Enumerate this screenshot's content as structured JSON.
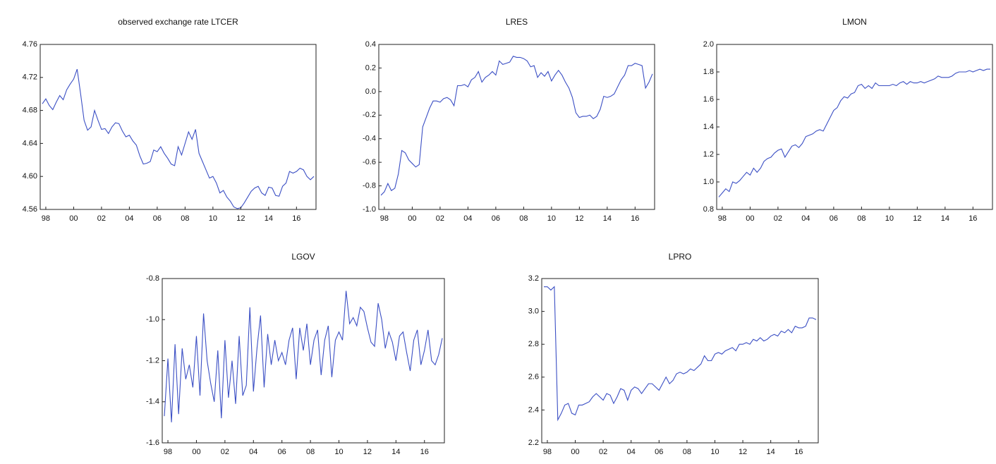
{
  "chart_data": [
    {
      "type": "line",
      "title": "observed exchange rate LTCER",
      "color": "#3b4fc4",
      "categories": [
        null,
        "98",
        null,
        null,
        null,
        null,
        null,
        null,
        null,
        "00",
        null,
        null,
        null,
        null,
        null,
        null,
        null,
        "02",
        null,
        null,
        null,
        null,
        null,
        null,
        null,
        "04",
        null,
        null,
        null,
        null,
        null,
        null,
        null,
        "06",
        null,
        null,
        null,
        null,
        null,
        null,
        null,
        "08",
        null,
        null,
        null,
        null,
        null,
        null,
        null,
        "10",
        null,
        null,
        null,
        null,
        null,
        null,
        null,
        "12",
        null,
        null,
        null,
        null,
        null,
        null,
        null,
        "14",
        null,
        null,
        null,
        null,
        null,
        null,
        null,
        "16",
        null,
        null,
        null,
        null,
        null
      ],
      "values": [
        4.688,
        4.694,
        4.686,
        4.681,
        4.69,
        4.698,
        4.693,
        4.705,
        4.712,
        4.718,
        4.73,
        4.7,
        4.668,
        4.656,
        4.66,
        4.68,
        4.668,
        4.657,
        4.658,
        4.652,
        4.66,
        4.665,
        4.664,
        4.655,
        4.648,
        4.65,
        4.643,
        4.638,
        4.625,
        4.615,
        4.616,
        4.618,
        4.632,
        4.63,
        4.636,
        4.628,
        4.622,
        4.615,
        4.613,
        4.636,
        4.626,
        4.64,
        4.654,
        4.645,
        4.657,
        4.628,
        4.618,
        4.608,
        4.598,
        4.6,
        4.592,
        4.58,
        4.583,
        4.575,
        4.57,
        4.563,
        4.561,
        4.562,
        4.568,
        4.575,
        4.582,
        4.586,
        4.588,
        4.58,
        4.577,
        4.587,
        4.586,
        4.577,
        4.576,
        4.588,
        4.592,
        4.606,
        4.604,
        4.606,
        4.61,
        4.608,
        4.6,
        4.596,
        4.6
      ],
      "ylim": [
        4.56,
        4.76
      ],
      "yticks": [
        4.56,
        {
          "value": 4.6,
          "label": "4.60"
        },
        4.64,
        4.68,
        4.72,
        4.76
      ]
    },
    {
      "type": "line",
      "title": "LRES",
      "color": "#3b4fc4",
      "categories": [
        null,
        "98",
        null,
        null,
        null,
        null,
        null,
        null,
        null,
        "00",
        null,
        null,
        null,
        null,
        null,
        null,
        null,
        "02",
        null,
        null,
        null,
        null,
        null,
        null,
        null,
        "04",
        null,
        null,
        null,
        null,
        null,
        null,
        null,
        "06",
        null,
        null,
        null,
        null,
        null,
        null,
        null,
        "08",
        null,
        null,
        null,
        null,
        null,
        null,
        null,
        "10",
        null,
        null,
        null,
        null,
        null,
        null,
        null,
        "12",
        null,
        null,
        null,
        null,
        null,
        null,
        null,
        "14",
        null,
        null,
        null,
        null,
        null,
        null,
        null,
        "16",
        null,
        null,
        null,
        null,
        null
      ],
      "values": [
        -0.88,
        -0.85,
        -0.78,
        -0.84,
        -0.82,
        -0.7,
        -0.5,
        -0.52,
        -0.58,
        -0.61,
        -0.64,
        -0.62,
        -0.3,
        -0.22,
        -0.14,
        -0.08,
        -0.08,
        -0.09,
        -0.06,
        -0.05,
        -0.07,
        -0.12,
        0.05,
        0.05,
        0.06,
        0.04,
        0.1,
        0.12,
        0.17,
        0.08,
        0.12,
        0.14,
        0.17,
        0.14,
        0.26,
        0.23,
        0.24,
        0.25,
        0.3,
        0.29,
        0.29,
        0.28,
        0.26,
        0.21,
        0.22,
        0.12,
        0.16,
        0.13,
        0.17,
        0.09,
        0.14,
        0.18,
        0.14,
        0.08,
        0.03,
        -0.05,
        -0.18,
        -0.22,
        -0.21,
        -0.21,
        -0.2,
        -0.23,
        -0.21,
        -0.15,
        -0.04,
        -0.05,
        -0.04,
        -0.02,
        0.04,
        0.1,
        0.14,
        0.22,
        0.22,
        0.24,
        0.23,
        0.22,
        0.03,
        0.08,
        0.15
      ],
      "ylim": [
        -1.0,
        0.4
      ],
      "yticks": [
        {
          "value": -1,
          "label": "-1.0"
        },
        -0.8,
        -0.6,
        -0.4,
        -0.2,
        {
          "value": 0,
          "label": "0.0"
        },
        0.2,
        0.4
      ]
    },
    {
      "type": "line",
      "title": "LMON",
      "color": "#3b4fc4",
      "categories": [
        null,
        "98",
        null,
        null,
        null,
        null,
        null,
        null,
        null,
        "00",
        null,
        null,
        null,
        null,
        null,
        null,
        null,
        "02",
        null,
        null,
        null,
        null,
        null,
        null,
        null,
        "04",
        null,
        null,
        null,
        null,
        null,
        null,
        null,
        "06",
        null,
        null,
        null,
        null,
        null,
        null,
        null,
        "08",
        null,
        null,
        null,
        null,
        null,
        null,
        null,
        "10",
        null,
        null,
        null,
        null,
        null,
        null,
        null,
        "12",
        null,
        null,
        null,
        null,
        null,
        null,
        null,
        "14",
        null,
        null,
        null,
        null,
        null,
        null,
        null,
        "16",
        null,
        null,
        null,
        null,
        null
      ],
      "values": [
        0.89,
        0.92,
        0.95,
        0.93,
        1.0,
        0.99,
        1.01,
        1.04,
        1.07,
        1.05,
        1.1,
        1.07,
        1.1,
        1.15,
        1.17,
        1.18,
        1.21,
        1.23,
        1.24,
        1.18,
        1.22,
        1.26,
        1.27,
        1.25,
        1.28,
        1.33,
        1.34,
        1.35,
        1.37,
        1.38,
        1.37,
        1.42,
        1.47,
        1.52,
        1.54,
        1.59,
        1.62,
        1.61,
        1.64,
        1.65,
        1.7,
        1.71,
        1.68,
        1.7,
        1.68,
        1.72,
        1.7,
        1.7,
        1.7,
        1.7,
        1.71,
        1.7,
        1.72,
        1.73,
        1.71,
        1.73,
        1.72,
        1.72,
        1.73,
        1.72,
        1.73,
        1.74,
        1.75,
        1.77,
        1.76,
        1.76,
        1.76,
        1.77,
        1.79,
        1.8,
        1.8,
        1.8,
        1.81,
        1.8,
        1.81,
        1.82,
        1.81,
        1.82,
        1.82
      ],
      "ylim": [
        0.8,
        2.0
      ],
      "yticks": [
        0.8,
        {
          "value": 1,
          "label": "1.0"
        },
        1.2,
        1.4,
        1.6,
        1.8,
        {
          "value": 2,
          "label": "2.0"
        }
      ]
    },
    {
      "type": "line",
      "title": "LGOV",
      "color": "#3b4fc4",
      "categories": [
        null,
        "98",
        null,
        null,
        null,
        null,
        null,
        null,
        null,
        "00",
        null,
        null,
        null,
        null,
        null,
        null,
        null,
        "02",
        null,
        null,
        null,
        null,
        null,
        null,
        null,
        "04",
        null,
        null,
        null,
        null,
        null,
        null,
        null,
        "06",
        null,
        null,
        null,
        null,
        null,
        null,
        null,
        "08",
        null,
        null,
        null,
        null,
        null,
        null,
        null,
        "10",
        null,
        null,
        null,
        null,
        null,
        null,
        null,
        "12",
        null,
        null,
        null,
        null,
        null,
        null,
        null,
        "14",
        null,
        null,
        null,
        null,
        null,
        null,
        null,
        "16",
        null,
        null,
        null,
        null,
        null
      ],
      "values": [
        -1.47,
        -1.19,
        -1.5,
        -1.12,
        -1.46,
        -1.14,
        -1.29,
        -1.22,
        -1.33,
        -1.08,
        -1.37,
        -0.97,
        -1.2,
        -1.31,
        -1.4,
        -1.15,
        -1.48,
        -1.1,
        -1.38,
        -1.2,
        -1.41,
        -1.08,
        -1.37,
        -1.32,
        -0.94,
        -1.35,
        -1.14,
        -0.98,
        -1.33,
        -1.07,
        -1.22,
        -1.1,
        -1.2,
        -1.16,
        -1.22,
        -1.1,
        -1.04,
        -1.29,
        -1.04,
        -1.15,
        -1.02,
        -1.22,
        -1.1,
        -1.05,
        -1.27,
        -1.1,
        -1.03,
        -1.28,
        -1.1,
        -1.06,
        -1.1,
        -0.86,
        -1.02,
        -0.99,
        -1.03,
        -0.94,
        -0.96,
        -1.04,
        -1.11,
        -1.13,
        -0.92,
        -1.0,
        -1.14,
        -1.06,
        -1.11,
        -1.2,
        -1.08,
        -1.06,
        -1.16,
        -1.25,
        -1.1,
        -1.05,
        -1.22,
        -1.15,
        -1.05,
        -1.2,
        -1.22,
        -1.17,
        -1.09
      ],
      "ylim": [
        -1.6,
        -0.8
      ],
      "yticks": [
        -1.6,
        -1.4,
        -1.2,
        {
          "value": -1,
          "label": "-1.0"
        },
        -0.8
      ]
    },
    {
      "type": "line",
      "title": "LPRO",
      "color": "#3b4fc4",
      "categories": [
        null,
        "98",
        null,
        null,
        null,
        null,
        null,
        null,
        null,
        "00",
        null,
        null,
        null,
        null,
        null,
        null,
        null,
        "02",
        null,
        null,
        null,
        null,
        null,
        null,
        null,
        "04",
        null,
        null,
        null,
        null,
        null,
        null,
        null,
        "06",
        null,
        null,
        null,
        null,
        null,
        null,
        null,
        "08",
        null,
        null,
        null,
        null,
        null,
        null,
        null,
        "10",
        null,
        null,
        null,
        null,
        null,
        null,
        null,
        "12",
        null,
        null,
        null,
        null,
        null,
        null,
        null,
        "14",
        null,
        null,
        null,
        null,
        null,
        null,
        null,
        "16",
        null,
        null,
        null,
        null,
        null
      ],
      "values": [
        3.15,
        3.15,
        3.13,
        3.15,
        2.34,
        2.38,
        2.43,
        2.44,
        2.38,
        2.37,
        2.43,
        2.43,
        2.44,
        2.45,
        2.48,
        2.5,
        2.48,
        2.46,
        2.5,
        2.49,
        2.44,
        2.48,
        2.53,
        2.52,
        2.46,
        2.52,
        2.54,
        2.53,
        2.5,
        2.53,
        2.56,
        2.56,
        2.54,
        2.52,
        2.56,
        2.6,
        2.56,
        2.58,
        2.62,
        2.63,
        2.62,
        2.63,
        2.65,
        2.64,
        2.66,
        2.68,
        2.73,
        2.7,
        2.7,
        2.74,
        2.75,
        2.74,
        2.76,
        2.77,
        2.78,
        2.76,
        2.8,
        2.8,
        2.81,
        2.8,
        2.83,
        2.82,
        2.84,
        2.82,
        2.83,
        2.85,
        2.86,
        2.85,
        2.88,
        2.87,
        2.89,
        2.87,
        2.91,
        2.9,
        2.9,
        2.91,
        2.96,
        2.96,
        2.95
      ],
      "ylim": [
        2.2,
        3.2
      ],
      "yticks": [
        2.2,
        2.4,
        2.6,
        2.8,
        {
          "value": 3,
          "label": "3.0"
        },
        3.2
      ]
    }
  ]
}
